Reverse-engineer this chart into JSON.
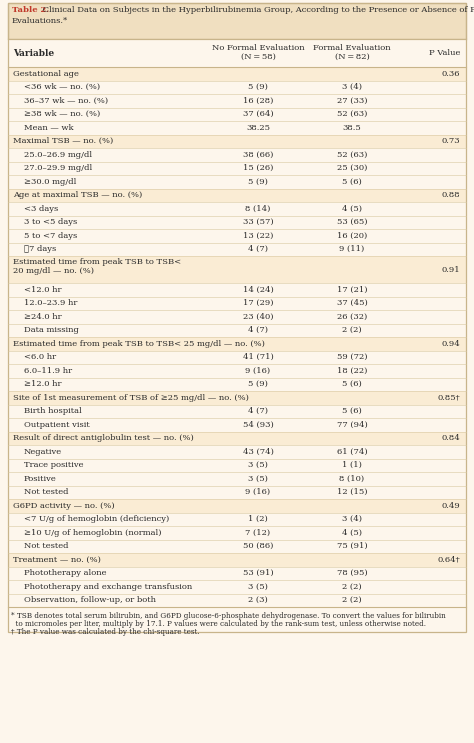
{
  "title_bold": "Table 2.",
  "title_line1": " Clinical Data on Subjects in the Hyperbilirubinemia Group, According to the Presence or Absence of Formal",
  "title_line2": "Evaluations.*",
  "rows": [
    {
      "label": "Gestational age",
      "c1": "",
      "c2": "",
      "pval": "0.36",
      "indent": 0,
      "shaded": true,
      "rh": 1
    },
    {
      "label": "<36 wk — no. (%)",
      "c1": "5 (9)",
      "c2": "3 (4)",
      "pval": "",
      "indent": 1,
      "shaded": false,
      "rh": 1
    },
    {
      "label": "36–37 wk — no. (%)",
      "c1": "16 (28)",
      "c2": "27 (33)",
      "pval": "",
      "indent": 1,
      "shaded": false,
      "rh": 1
    },
    {
      "label": "≥38 wk — no. (%)",
      "c1": "37 (64)",
      "c2": "52 (63)",
      "pval": "",
      "indent": 1,
      "shaded": false,
      "rh": 1
    },
    {
      "label": "Mean — wk",
      "c1": "38.25",
      "c2": "38.5",
      "pval": "",
      "indent": 1,
      "shaded": false,
      "rh": 1
    },
    {
      "label": "Maximal TSB — no. (%)",
      "c1": "",
      "c2": "",
      "pval": "0.73",
      "indent": 0,
      "shaded": true,
      "rh": 1
    },
    {
      "label": "25.0–26.9 mg/dl",
      "c1": "38 (66)",
      "c2": "52 (63)",
      "pval": "",
      "indent": 1,
      "shaded": false,
      "rh": 1
    },
    {
      "label": "27.0–29.9 mg/dl",
      "c1": "15 (26)",
      "c2": "25 (30)",
      "pval": "",
      "indent": 1,
      "shaded": false,
      "rh": 1
    },
    {
      "label": "≥30.0 mg/dl",
      "c1": "5 (9)",
      "c2": "5 (6)",
      "pval": "",
      "indent": 1,
      "shaded": false,
      "rh": 1
    },
    {
      "label": "Age at maximal TSB — no. (%)",
      "c1": "",
      "c2": "",
      "pval": "0.88",
      "indent": 0,
      "shaded": true,
      "rh": 1
    },
    {
      "label": "<3 days",
      "c1": "8 (14)",
      "c2": "4 (5)",
      "pval": "",
      "indent": 1,
      "shaded": false,
      "rh": 1
    },
    {
      "label": "3 to <5 days",
      "c1": "33 (57)",
      "c2": "53 (65)",
      "pval": "",
      "indent": 1,
      "shaded": false,
      "rh": 1
    },
    {
      "label": "5 to <7 days",
      "c1": "13 (22)",
      "c2": "16 (20)",
      "pval": "",
      "indent": 1,
      "shaded": false,
      "rh": 1
    },
    {
      "label": "≧7 days",
      "c1": "4 (7)",
      "c2": "9 (11)",
      "pval": "",
      "indent": 1,
      "shaded": false,
      "rh": 1
    },
    {
      "label": "Estimated time from peak TSB to TSB<\n20 mg/dl — no. (%)",
      "c1": "",
      "c2": "",
      "pval": "0.91",
      "indent": 0,
      "shaded": true,
      "rh": 2
    },
    {
      "label": "<12.0 hr",
      "c1": "14 (24)",
      "c2": "17 (21)",
      "pval": "",
      "indent": 1,
      "shaded": false,
      "rh": 1
    },
    {
      "label": "12.0–23.9 hr",
      "c1": "17 (29)",
      "c2": "37 (45)",
      "pval": "",
      "indent": 1,
      "shaded": false,
      "rh": 1
    },
    {
      "label": "≥24.0 hr",
      "c1": "23 (40)",
      "c2": "26 (32)",
      "pval": "",
      "indent": 1,
      "shaded": false,
      "rh": 1
    },
    {
      "label": "Data missing",
      "c1": "4 (7)",
      "c2": "2 (2)",
      "pval": "",
      "indent": 1,
      "shaded": false,
      "rh": 1
    },
    {
      "label": "Estimated time from peak TSB to TSB< 25 mg/dl — no. (%)",
      "c1": "",
      "c2": "",
      "pval": "0.94",
      "indent": 0,
      "shaded": true,
      "rh": 1
    },
    {
      "label": "<6.0 hr",
      "c1": "41 (71)",
      "c2": "59 (72)",
      "pval": "",
      "indent": 1,
      "shaded": false,
      "rh": 1
    },
    {
      "label": "6.0–11.9 hr",
      "c1": "9 (16)",
      "c2": "18 (22)",
      "pval": "",
      "indent": 1,
      "shaded": false,
      "rh": 1
    },
    {
      "label": "≥12.0 hr",
      "c1": "5 (9)",
      "c2": "5 (6)",
      "pval": "",
      "indent": 1,
      "shaded": false,
      "rh": 1
    },
    {
      "label": "Site of 1st measurement of TSB of ≥25 mg/dl — no. (%)",
      "c1": "",
      "c2": "",
      "pval": "0.85†",
      "indent": 0,
      "shaded": true,
      "rh": 1
    },
    {
      "label": "Birth hospital",
      "c1": "4 (7)",
      "c2": "5 (6)",
      "pval": "",
      "indent": 1,
      "shaded": false,
      "rh": 1
    },
    {
      "label": "Outpatient visit",
      "c1": "54 (93)",
      "c2": "77 (94)",
      "pval": "",
      "indent": 1,
      "shaded": false,
      "rh": 1
    },
    {
      "label": "Result of direct antiglobulin test — no. (%)",
      "c1": "",
      "c2": "",
      "pval": "0.84",
      "indent": 0,
      "shaded": true,
      "rh": 1
    },
    {
      "label": "Negative",
      "c1": "43 (74)",
      "c2": "61 (74)",
      "pval": "",
      "indent": 1,
      "shaded": false,
      "rh": 1
    },
    {
      "label": "Trace positive",
      "c1": "3 (5)",
      "c2": "1 (1)",
      "pval": "",
      "indent": 1,
      "shaded": false,
      "rh": 1
    },
    {
      "label": "Positive",
      "c1": "3 (5)",
      "c2": "8 (10)",
      "pval": "",
      "indent": 1,
      "shaded": false,
      "rh": 1
    },
    {
      "label": "Not tested",
      "c1": "9 (16)",
      "c2": "12 (15)",
      "pval": "",
      "indent": 1,
      "shaded": false,
      "rh": 1
    },
    {
      "label": "G6PD activity — no. (%)",
      "c1": "",
      "c2": "",
      "pval": "0.49",
      "indent": 0,
      "shaded": true,
      "rh": 1
    },
    {
      "label": "<7 U/g of hemoglobin (deficiency)",
      "c1": "1 (2)",
      "c2": "3 (4)",
      "pval": "",
      "indent": 1,
      "shaded": false,
      "rh": 1
    },
    {
      "label": "≥10 U/g of hemoglobin (normal)",
      "c1": "7 (12)",
      "c2": "4 (5)",
      "pval": "",
      "indent": 1,
      "shaded": false,
      "rh": 1
    },
    {
      "label": "Not tested",
      "c1": "50 (86)",
      "c2": "75 (91)",
      "pval": "",
      "indent": 1,
      "shaded": false,
      "rh": 1
    },
    {
      "label": "Treatment — no. (%)",
      "c1": "",
      "c2": "",
      "pval": "0.64†",
      "indent": 0,
      "shaded": true,
      "rh": 1
    },
    {
      "label": "Phototherapy alone",
      "c1": "53 (91)",
      "c2": "78 (95)",
      "pval": "",
      "indent": 1,
      "shaded": false,
      "rh": 1
    },
    {
      "label": "Phototherapy and exchange transfusion",
      "c1": "3 (5)",
      "c2": "2 (2)",
      "pval": "",
      "indent": 1,
      "shaded": false,
      "rh": 1
    },
    {
      "label": "Observation, follow-up, or both",
      "c1": "2 (3)",
      "c2": "2 (2)",
      "pval": "",
      "indent": 1,
      "shaded": false,
      "rh": 1
    }
  ],
  "footnote1": "* TSB denotes total serum bilirubin, and G6PD glucose-6-phosphate dehydrogenase. To convert the values for bilirubin",
  "footnote2": "  to micromoles per liter, multiply by 17.1. P values were calculated by the rank-sum test, unless otherwise noted.",
  "footnote3": "† The P value was calculated by the chi-square test.",
  "bg_color": "#fdf6ec",
  "title_bg": "#f0dfc0",
  "shaded_bg": "#faecd4",
  "unshaded_bg": "#fdf6ec",
  "title_red": "#c0392b",
  "text_dark": "#2a2a2a",
  "border_col": "#c8b48a",
  "thin_line": "#d8c8a0"
}
